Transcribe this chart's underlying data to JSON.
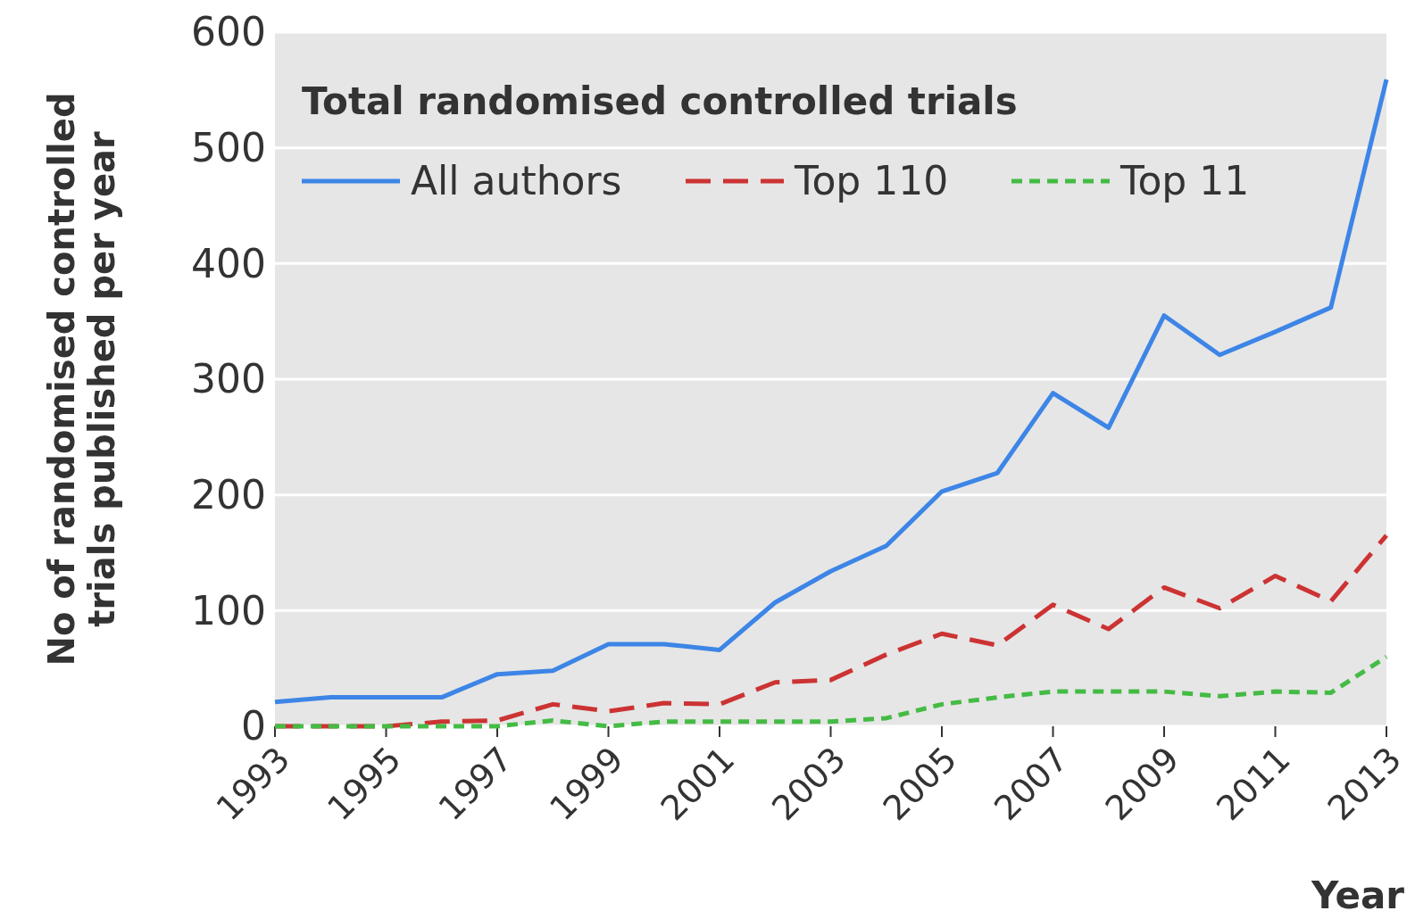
{
  "chart_data": {
    "type": "line",
    "xlabel": "Year",
    "ylabel": "No of randomised controlled trials published per year",
    "legend_title": "Total randomised controlled trials",
    "legend": "top left",
    "grid": "y",
    "x": [
      1993,
      1994,
      1995,
      1996,
      1997,
      1998,
      1999,
      2000,
      2001,
      2002,
      2003,
      2004,
      2005,
      2006,
      2007,
      2008,
      2009,
      2010,
      2011,
      2012,
      2013
    ],
    "xlim": [
      1993,
      2013
    ],
    "xticks": [
      1993,
      1995,
      1997,
      1999,
      2001,
      2003,
      2005,
      2007,
      2009,
      2011,
      2013
    ],
    "ylim": [
      0,
      600
    ],
    "yticks": [
      0,
      100,
      200,
      300,
      400,
      500,
      600
    ],
    "series": [
      {
        "name": "All authors",
        "color": "#3d85e6",
        "line_style": "solid",
        "values": [
          21,
          25,
          25,
          25,
          45,
          48,
          71,
          71,
          66,
          107,
          134,
          156,
          203,
          219,
          288,
          258,
          355,
          321,
          341,
          362,
          559
        ]
      },
      {
        "name": "Top 110",
        "color": "#cc3333",
        "line_style": "dashed",
        "values": [
          0,
          0,
          0,
          4,
          5,
          19,
          13,
          20,
          19,
          38,
          40,
          62,
          80,
          70,
          105,
          84,
          120,
          102,
          130,
          108,
          165
        ]
      },
      {
        "name": "Top 11",
        "color": "#44bb44",
        "line_style": "dotted",
        "values": [
          0,
          0,
          0,
          0,
          0,
          5,
          0,
          4,
          4,
          4,
          4,
          7,
          19,
          25,
          30,
          30,
          30,
          26,
          30,
          29,
          60
        ]
      }
    ]
  }
}
